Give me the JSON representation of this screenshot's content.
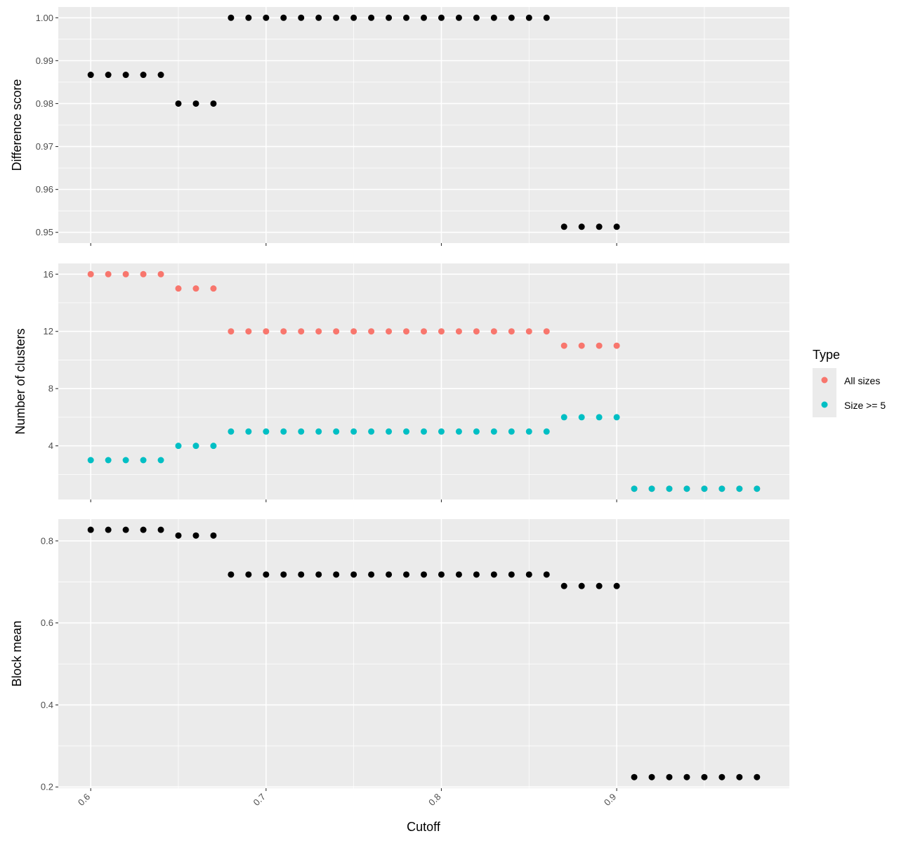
{
  "chart_data": {
    "type": "scatter",
    "xlabel": "Cutoff",
    "x_ticks": [
      "0.6",
      "0.7",
      "0.8",
      "0.9"
    ],
    "xlim": [
      0.5815,
      0.9985
    ],
    "grid": true,
    "legend_position": "right",
    "legend": {
      "title": "Type",
      "entries": [
        {
          "name": "All sizes",
          "color": "#F8766D"
        },
        {
          "name": "Size >= 5",
          "color": "#00BFC4"
        }
      ]
    },
    "panels": [
      {
        "ylabel": "Difference score",
        "ylim": [
          0.9475,
          1.0025
        ],
        "y_ticks": [
          "0.95",
          "0.96",
          "0.97",
          "0.98",
          "0.99",
          "1.00"
        ],
        "series": [
          {
            "color": "#000000",
            "x": [
              0.6,
              0.61,
              0.62,
              0.63,
              0.64,
              0.65,
              0.66,
              0.67,
              0.68,
              0.69,
              0.7,
              0.71,
              0.72,
              0.73,
              0.74,
              0.75,
              0.76,
              0.77,
              0.78,
              0.79,
              0.8,
              0.81,
              0.82,
              0.83,
              0.84,
              0.85,
              0.86,
              0.87,
              0.88,
              0.89,
              0.9
            ],
            "y": [
              0.9867,
              0.9867,
              0.9867,
              0.9867,
              0.9867,
              0.98,
              0.98,
              0.98,
              1.0,
              1.0,
              1.0,
              1.0,
              1.0,
              1.0,
              1.0,
              1.0,
              1.0,
              1.0,
              1.0,
              1.0,
              1.0,
              1.0,
              1.0,
              1.0,
              1.0,
              1.0,
              1.0,
              0.9513,
              0.9513,
              0.9513,
              0.9513
            ]
          }
        ]
      },
      {
        "ylabel": "Number of clusters",
        "ylim": [
          0.25,
          16.75
        ],
        "y_ticks": [
          "4",
          "8",
          "12",
          "16"
        ],
        "series": [
          {
            "name": "All sizes",
            "color": "#F8766D",
            "x": [
              0.6,
              0.61,
              0.62,
              0.63,
              0.64,
              0.65,
              0.66,
              0.67,
              0.68,
              0.69,
              0.7,
              0.71,
              0.72,
              0.73,
              0.74,
              0.75,
              0.76,
              0.77,
              0.78,
              0.79,
              0.8,
              0.81,
              0.82,
              0.83,
              0.84,
              0.85,
              0.86,
              0.87,
              0.88,
              0.89,
              0.9,
              0.91,
              0.92,
              0.93,
              0.94,
              0.95,
              0.96,
              0.97,
              0.98
            ],
            "y": [
              16,
              16,
              16,
              16,
              16,
              15,
              15,
              15,
              12,
              12,
              12,
              12,
              12,
              12,
              12,
              12,
              12,
              12,
              12,
              12,
              12,
              12,
              12,
              12,
              12,
              12,
              12,
              11,
              11,
              11,
              11,
              1,
              1,
              1,
              1,
              1,
              1,
              1,
              1
            ]
          },
          {
            "name": "Size >= 5",
            "color": "#00BFC4",
            "x": [
              0.6,
              0.61,
              0.62,
              0.63,
              0.64,
              0.65,
              0.66,
              0.67,
              0.68,
              0.69,
              0.7,
              0.71,
              0.72,
              0.73,
              0.74,
              0.75,
              0.76,
              0.77,
              0.78,
              0.79,
              0.8,
              0.81,
              0.82,
              0.83,
              0.84,
              0.85,
              0.86,
              0.87,
              0.88,
              0.89,
              0.9,
              0.91,
              0.92,
              0.93,
              0.94,
              0.95,
              0.96,
              0.97,
              0.98
            ],
            "y": [
              3,
              3,
              3,
              3,
              3,
              4,
              4,
              4,
              5,
              5,
              5,
              5,
              5,
              5,
              5,
              5,
              5,
              5,
              5,
              5,
              5,
              5,
              5,
              5,
              5,
              5,
              5,
              6,
              6,
              6,
              6,
              1,
              1,
              1,
              1,
              1,
              1,
              1,
              1
            ]
          }
        ]
      },
      {
        "ylabel": "Block mean",
        "ylim": [
          0.197,
          0.853
        ],
        "y_ticks": [
          "0.2",
          "0.4",
          "0.6",
          "0.8"
        ],
        "series": [
          {
            "color": "#000000",
            "x": [
              0.6,
              0.61,
              0.62,
              0.63,
              0.64,
              0.65,
              0.66,
              0.67,
              0.68,
              0.69,
              0.7,
              0.71,
              0.72,
              0.73,
              0.74,
              0.75,
              0.76,
              0.77,
              0.78,
              0.79,
              0.8,
              0.81,
              0.82,
              0.83,
              0.84,
              0.85,
              0.86,
              0.87,
              0.88,
              0.89,
              0.9,
              0.91,
              0.92,
              0.93,
              0.94,
              0.95,
              0.96,
              0.97,
              0.98
            ],
            "y": [
              0.827,
              0.827,
              0.827,
              0.827,
              0.827,
              0.813,
              0.813,
              0.813,
              0.718,
              0.718,
              0.718,
              0.718,
              0.718,
              0.718,
              0.718,
              0.718,
              0.718,
              0.718,
              0.718,
              0.718,
              0.718,
              0.718,
              0.718,
              0.718,
              0.718,
              0.718,
              0.718,
              0.69,
              0.69,
              0.69,
              0.69,
              0.224,
              0.224,
              0.224,
              0.224,
              0.224,
              0.224,
              0.224,
              0.224
            ]
          }
        ]
      }
    ]
  }
}
